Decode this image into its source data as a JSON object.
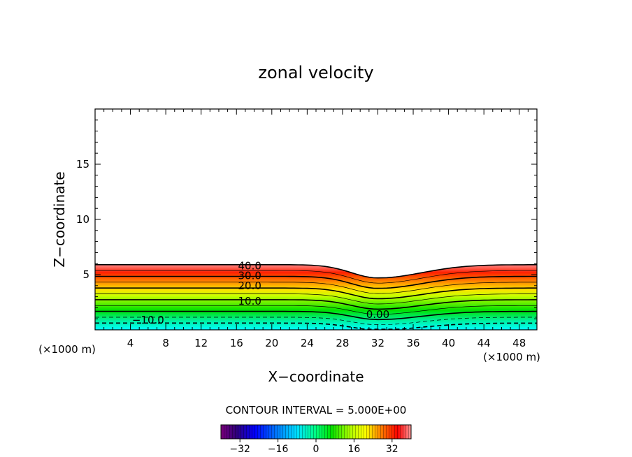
{
  "chart_data": {
    "type": "contour",
    "title": "zonal velocity",
    "xlabel": "X−coordinate",
    "ylabel": "Z−coordinate",
    "x_unit_left": "(×1000 m)",
    "x_unit_right": "(×1000 m)",
    "xlim": [
      0,
      50
    ],
    "ylim": [
      0,
      20
    ],
    "x_ticks": [
      4,
      8,
      12,
      16,
      20,
      24,
      28,
      32,
      36,
      40,
      44,
      48
    ],
    "y_ticks": [
      5,
      10,
      15
    ],
    "contour_interval_text": "CONTOUR INTERVAL = 5.000E+00",
    "colorbar": {
      "range": [
        -40,
        40
      ],
      "ticks": [
        -32,
        -16,
        0,
        16,
        32
      ],
      "tick_labels": [
        "−32",
        "−16",
        "0",
        "16",
        "32"
      ]
    },
    "contour_labels": [
      {
        "text": "40.0",
        "x": 17.5,
        "z": 5.8
      },
      {
        "text": "30.0",
        "x": 17.5,
        "z": 4.9
      },
      {
        "text": "20.0",
        "x": 17.5,
        "z": 4.0
      },
      {
        "text": "10.0",
        "x": 17.5,
        "z": 2.6
      },
      {
        "text": "0.00",
        "x": 32,
        "z": 1.4
      },
      {
        "text": "−10.0",
        "x": 6,
        "z": 0.9
      }
    ],
    "colors": {
      "cyan": "#00ffff",
      "green": "#00d000",
      "yellow": "#ffff00",
      "orange": "#ff8000",
      "red": "#ff0000",
      "pink": "#ff8080"
    }
  }
}
